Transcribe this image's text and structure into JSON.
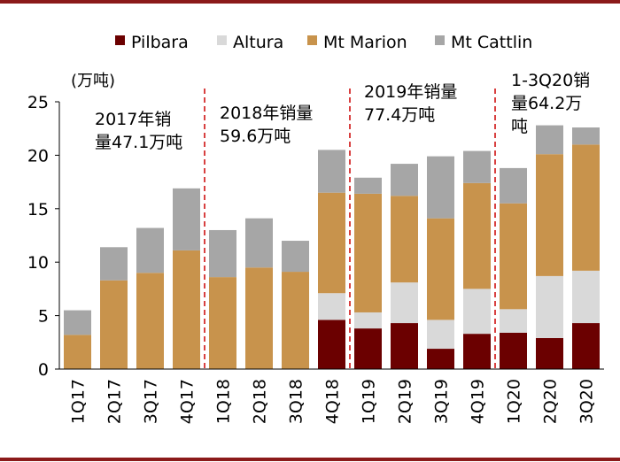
{
  "chart_data": {
    "type": "bar",
    "stacked": true,
    "unit": "(万吨)",
    "categories": [
      "1Q17",
      "2Q17",
      "3Q17",
      "4Q17",
      "1Q18",
      "2Q18",
      "3Q18",
      "4Q18",
      "1Q19",
      "2Q19",
      "3Q19",
      "4Q19",
      "1Q20",
      "2Q20",
      "3Q20"
    ],
    "series": [
      {
        "name": "Pilbara",
        "color": "#6b0000",
        "values": [
          0,
          0,
          0,
          0,
          0,
          0,
          0,
          4.6,
          3.8,
          4.3,
          1.9,
          3.3,
          3.4,
          2.9,
          4.3
        ]
      },
      {
        "name": "Altura",
        "color": "#d9d9d9",
        "values": [
          0,
          0,
          0,
          0,
          0,
          0,
          0,
          2.5,
          1.5,
          3.8,
          2.7,
          4.2,
          2.2,
          5.8,
          4.9
        ]
      },
      {
        "name": "Mt Marion",
        "color": "#c8934c",
        "values": [
          3.2,
          8.3,
          9.0,
          11.1,
          8.6,
          9.5,
          9.1,
          9.4,
          11.1,
          8.1,
          9.5,
          9.9,
          9.9,
          11.4,
          11.8
        ]
      },
      {
        "name": "Mt Cattlin",
        "color": "#a6a6a6",
        "values": [
          2.3,
          3.1,
          4.2,
          5.8,
          4.4,
          4.6,
          2.9,
          4.0,
          1.5,
          3.0,
          5.8,
          3.0,
          3.3,
          2.7,
          1.6
        ]
      }
    ],
    "ylim": [
      0,
      25
    ],
    "yticks": [
      0,
      5,
      10,
      15,
      20,
      25
    ],
    "dividers_after": [
      3,
      7,
      11
    ],
    "annotations": [
      {
        "lines": [
          "2017年销",
          "量47.1万吨"
        ],
        "segment": 0
      },
      {
        "lines": [
          "2018年销量",
          "59.6万吨"
        ],
        "segment": 1
      },
      {
        "lines": [
          "2019年销量",
          "77.4万吨"
        ],
        "segment": 2
      },
      {
        "lines": [
          "1-3Q20销",
          "量64.2万",
          "吨"
        ],
        "segment": 3
      }
    ],
    "legend_position": "top"
  },
  "colors": {
    "frame": "#8b1a1a",
    "divider": "#cc0000"
  }
}
